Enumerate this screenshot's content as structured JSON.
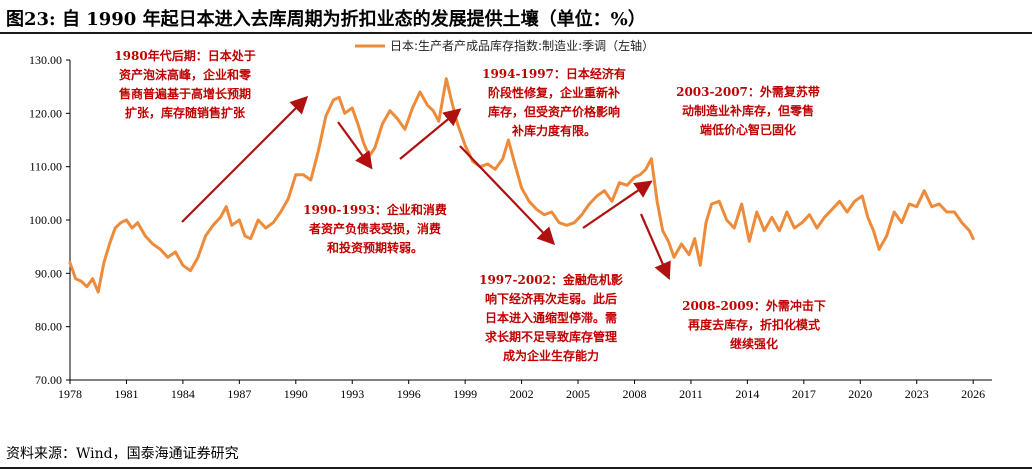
{
  "figure": {
    "title": "图23:  自 1990 年起日本进入去库周期为折扣业态的发展提供土壤（单位：%）",
    "source": "资料来源：Wind，国泰海通证券研究"
  },
  "colors": {
    "line": "#ED8B3A",
    "annotation": "#C00000",
    "arrow": "#B01010",
    "axis": "#000000"
  },
  "chart_data": {
    "type": "line",
    "title": "",
    "xlabel": "",
    "ylabel": "",
    "ylim": [
      70,
      130
    ],
    "xlim": [
      1978,
      2027
    ],
    "yticks": [
      "130.00",
      "120.00",
      "110.00",
      "100.00",
      "90.00",
      "80.00",
      "70.00"
    ],
    "ytick_values": [
      130,
      120,
      110,
      100,
      90,
      80,
      70
    ],
    "xticks": [
      "1978",
      "1981",
      "1984",
      "1987",
      "1990",
      "1993",
      "1996",
      "1999",
      "2002",
      "2005",
      "2008",
      "2011",
      "2014",
      "2017",
      "2020",
      "2023",
      "2026"
    ],
    "xtick_values": [
      1978,
      1981,
      1984,
      1987,
      1990,
      1993,
      1996,
      1999,
      2002,
      2005,
      2008,
      2011,
      2014,
      2017,
      2020,
      2023,
      2026
    ],
    "legend_position": "top-center",
    "grid": false,
    "series": [
      {
        "name": "日本:生产者产成品库存指数:制造业:季调（左轴）",
        "x": [
          1978.0,
          1978.3,
          1978.6,
          1978.9,
          1979.2,
          1979.5,
          1979.8,
          1980.1,
          1980.4,
          1980.7,
          1981.0,
          1981.3,
          1981.6,
          1982.0,
          1982.4,
          1982.8,
          1983.2,
          1983.6,
          1984.0,
          1984.4,
          1984.8,
          1985.2,
          1985.6,
          1986.0,
          1986.3,
          1986.6,
          1987.0,
          1987.3,
          1987.6,
          1988.0,
          1988.4,
          1988.8,
          1989.2,
          1989.6,
          1990.0,
          1990.4,
          1990.8,
          1991.2,
          1991.6,
          1992.0,
          1992.3,
          1992.6,
          1993.0,
          1993.3,
          1993.6,
          1993.9,
          1994.2,
          1994.6,
          1995.0,
          1995.4,
          1995.8,
          1996.2,
          1996.6,
          1997.0,
          1997.3,
          1997.6,
          1998.0,
          1998.3,
          1998.6,
          1999.0,
          1999.4,
          1999.8,
          2000.2,
          2000.6,
          2001.0,
          2001.3,
          2001.6,
          2002.0,
          2002.4,
          2002.8,
          2003.2,
          2003.6,
          2004.0,
          2004.4,
          2004.8,
          2005.2,
          2005.6,
          2006.0,
          2006.4,
          2006.8,
          2007.2,
          2007.6,
          2008.0,
          2008.3,
          2008.6,
          2008.9,
          2009.2,
          2009.5,
          2009.8,
          2010.1,
          2010.5,
          2010.9,
          2011.2,
          2011.5,
          2011.8,
          2012.1,
          2012.5,
          2012.9,
          2013.3,
          2013.7,
          2014.1,
          2014.5,
          2014.9,
          2015.3,
          2015.7,
          2016.1,
          2016.5,
          2016.9,
          2017.3,
          2017.7,
          2018.1,
          2018.5,
          2018.9,
          2019.3,
          2019.7,
          2020.1,
          2020.4,
          2020.7,
          2021.0,
          2021.4,
          2021.8,
          2022.2,
          2022.6,
          2023.0,
          2023.4,
          2023.8,
          2024.2,
          2024.6,
          2025.0,
          2025.4,
          2025.8,
          2026.0
        ],
        "values": [
          92.0,
          89.0,
          88.5,
          87.5,
          89.0,
          86.5,
          92.0,
          95.5,
          98.5,
          99.5,
          100.0,
          98.5,
          99.5,
          97.0,
          95.5,
          94.5,
          93.0,
          94.0,
          91.5,
          90.5,
          93.0,
          97.0,
          99.0,
          100.5,
          102.5,
          99.0,
          100.0,
          97.0,
          96.5,
          100.0,
          98.5,
          99.5,
          101.5,
          104.0,
          108.5,
          108.5,
          107.5,
          113.0,
          119.5,
          122.5,
          123.0,
          120.0,
          121.0,
          118.0,
          114.5,
          112.0,
          113.5,
          118.0,
          120.5,
          119.0,
          117.0,
          121.0,
          124.0,
          121.5,
          120.5,
          118.5,
          126.5,
          122.0,
          118.0,
          114.0,
          111.0,
          110.0,
          110.5,
          109.5,
          111.5,
          115.0,
          111.0,
          106.0,
          103.5,
          102.0,
          101.0,
          101.5,
          99.5,
          99.0,
          99.5,
          101.0,
          103.0,
          104.5,
          105.5,
          103.5,
          107.0,
          106.5,
          108.0,
          108.5,
          109.5,
          111.5,
          103.5,
          98.0,
          96.0,
          93.0,
          95.5,
          93.5,
          96.5,
          91.5,
          99.5,
          103.0,
          103.5,
          100.0,
          98.5,
          103.0,
          96.0,
          101.5,
          98.0,
          100.5,
          98.0,
          101.5,
          98.5,
          99.5,
          101.0,
          98.5,
          100.5,
          102.0,
          103.5,
          101.5,
          103.5,
          104.5,
          100.5,
          98.0,
          94.5,
          97.0,
          101.5,
          99.5,
          103.0,
          102.5,
          105.5,
          102.5,
          103.0,
          101.5,
          101.5,
          99.5,
          98.0,
          96.5
        ]
      }
    ],
    "annotations": [
      {
        "lines": [
          "1980年代后期：日本处于",
          "资产泡沫高峰，企业和零",
          "售商普遍基于高增长预期",
          "扩张，库存随销售扩张"
        ]
      },
      {
        "lines": [
          "1990-1993：企业和消费",
          "者资产负债表受损，消费",
          "和投资预期转弱。"
        ]
      },
      {
        "lines": [
          "1994-1997：日本经济有",
          "阶段性修复，企业重新补",
          "库存，但受资产价格影响",
          "补库力度有限。"
        ]
      },
      {
        "lines": [
          "1997-2002：金融危机影",
          "响下经济再次走弱。此后",
          "日本进入通缩型停滞。需",
          "求长期不足导致库存管理",
          "成为企业生存能力"
        ]
      },
      {
        "lines": [
          "2003-2007：外需复苏带",
          "动制造业补库存，但零售",
          "端低价心智已固化"
        ]
      },
      {
        "lines": [
          "2008-2009：外需冲击下",
          "再度去库存，折扣化模式",
          "继续强化"
        ]
      }
    ]
  }
}
